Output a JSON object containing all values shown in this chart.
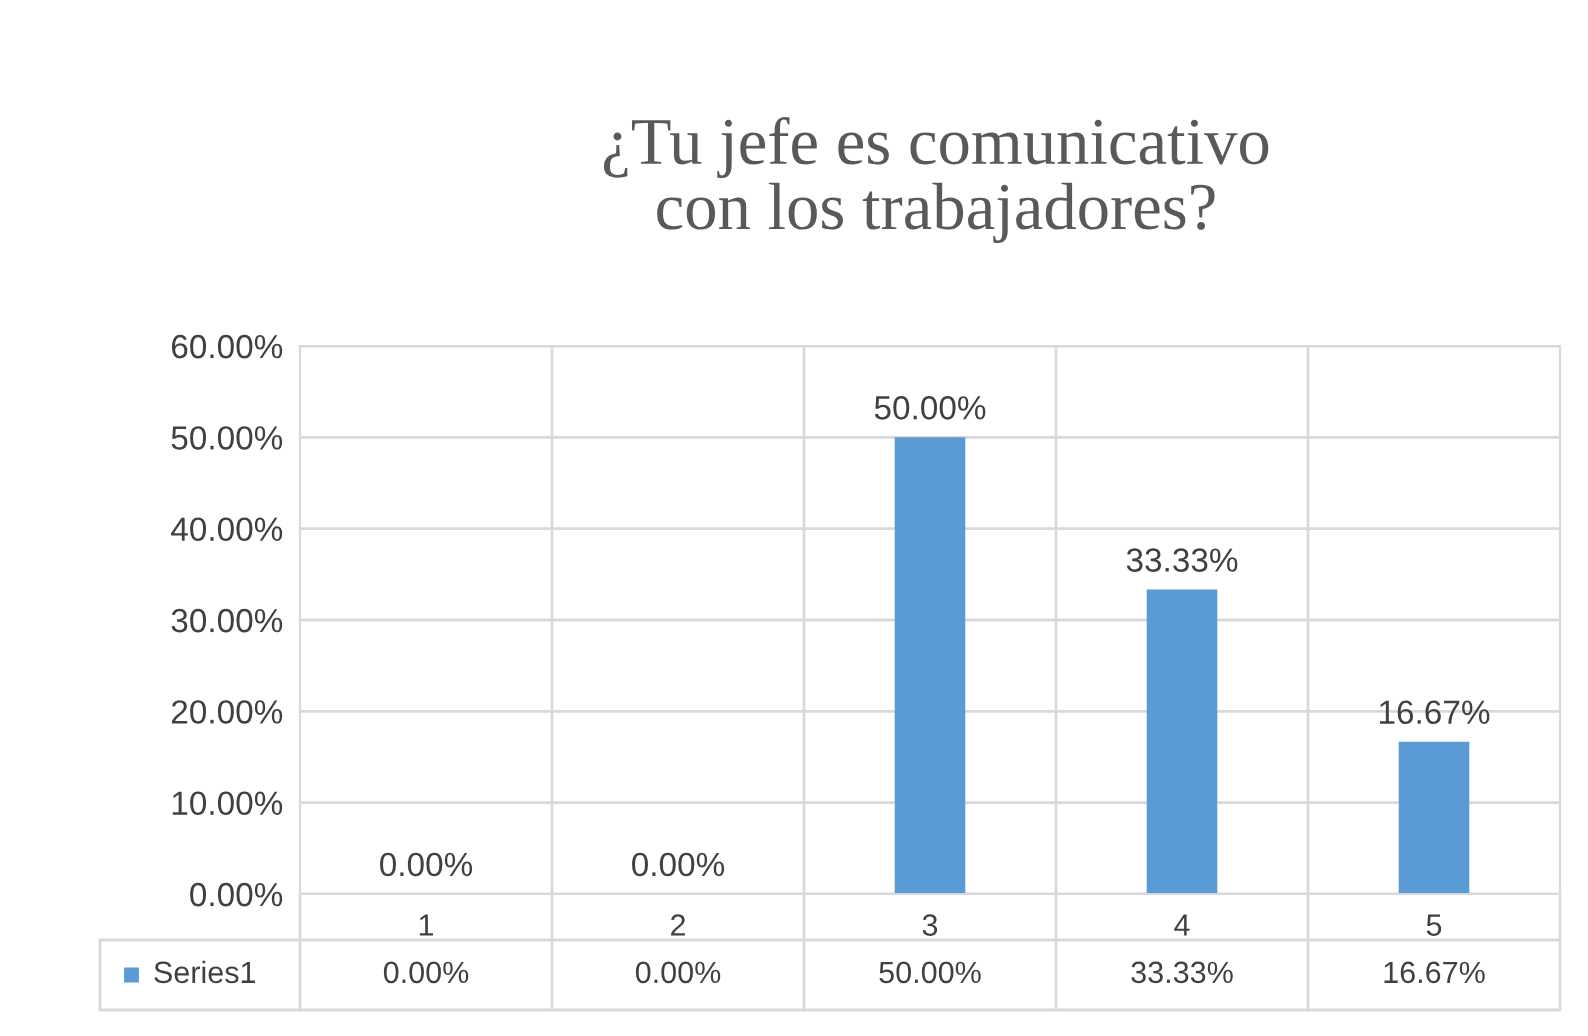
{
  "chart_data": {
    "type": "bar",
    "title": "¿Tu jefe es comunicativo\ncon los trabajadores?",
    "categories": [
      "1",
      "2",
      "3",
      "4",
      "5"
    ],
    "series": [
      {
        "name": "Series1",
        "color": "#5b9bd5",
        "values": [
          0,
          0,
          50,
          33.33,
          16.67
        ],
        "value_labels": [
          "0.00%",
          "0.00%",
          "50.00%",
          "33.33%",
          "16.67%"
        ]
      }
    ],
    "ylim": [
      0,
      60
    ],
    "yticks": [
      {
        "value": 0,
        "label": "0.00%"
      },
      {
        "value": 10,
        "label": "10.00%"
      },
      {
        "value": 20,
        "label": "20.00%"
      },
      {
        "value": 30,
        "label": "30.00%"
      },
      {
        "value": 40,
        "label": "40.00%"
      },
      {
        "value": 50,
        "label": "50.00%"
      },
      {
        "value": 60,
        "label": "60.00%"
      }
    ],
    "grid": true
  }
}
